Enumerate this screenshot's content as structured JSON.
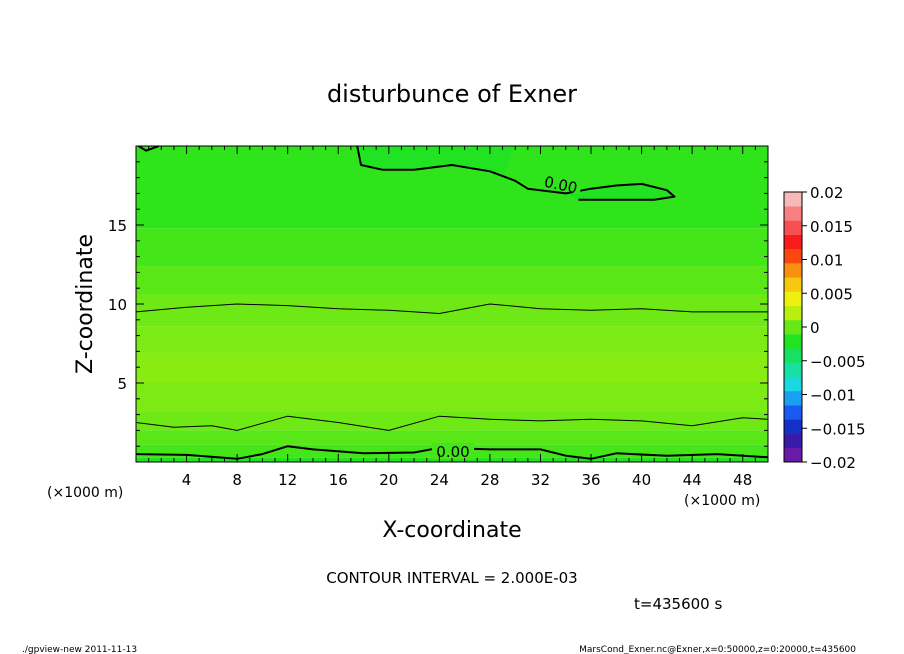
{
  "chart_data": {
    "type": "heatmap",
    "title": "disturbunce of Exner",
    "xlabel": "X-coordinate",
    "ylabel": "Z-coordinate",
    "x_unit": "(×1000 m)",
    "y_unit": "(×1000 m)",
    "xlim": [
      0,
      50
    ],
    "ylim": [
      0,
      20
    ],
    "x_ticks": [
      "4",
      "8",
      "12",
      "16",
      "20",
      "24",
      "28",
      "32",
      "36",
      "40",
      "44",
      "48"
    ],
    "y_ticks": [
      "5",
      "10",
      "15"
    ],
    "colorbar": {
      "range": [
        -0.02,
        0.02
      ],
      "tick_labels": [
        "0.02",
        "0.015",
        "0.01",
        "0.005",
        "0",
        "−0.005",
        "−0.01",
        "−0.015",
        "−0.02"
      ],
      "tick_values": [
        0.02,
        0.015,
        0.01,
        0.005,
        0,
        -0.005,
        -0.01,
        -0.015,
        -0.02
      ],
      "colors": [
        "#6a1aa8",
        "#3a1aa8",
        "#1430c8",
        "#1a5af0",
        "#1aa0f0",
        "#18d8e0",
        "#18e0a0",
        "#18e060",
        "#22e322",
        "#66e816",
        "#b8ee10",
        "#eef010",
        "#f8c810",
        "#f89010",
        "#f84810",
        "#f81c1c",
        "#f85050",
        "#f88080",
        "#f8b8b8"
      ]
    },
    "contour_interval": "CONTOUR INTERVAL = 2.000E-03",
    "contour_labels": [
      "0.00",
      "0.00"
    ],
    "bands": [
      {
        "z": [
          0.0,
          0.3
        ],
        "color": "#22e322"
      },
      {
        "z": [
          0.3,
          1.1
        ],
        "color": "#44e61a"
      },
      {
        "z": [
          1.1,
          2.0
        ],
        "color": "#5ae718"
      },
      {
        "z": [
          2.0,
          3.2
        ],
        "color": "#6ee916"
      },
      {
        "z": [
          3.2,
          5.0
        ],
        "color": "#7cea14"
      },
      {
        "z": [
          5.0,
          6.9
        ],
        "color": "#88ec12"
      },
      {
        "z": [
          6.9,
          8.6
        ],
        "color": "#7cea14"
      },
      {
        "z": [
          8.6,
          10.6
        ],
        "color": "#6ee916"
      },
      {
        "z": [
          10.6,
          12.4
        ],
        "color": "#5ae718"
      },
      {
        "z": [
          12.4,
          14.8
        ],
        "color": "#44e61a"
      },
      {
        "z": [
          14.8,
          20.0
        ],
        "color": "#30e41c"
      }
    ],
    "contours": [
      {
        "name": "c0",
        "width": 2,
        "points": [
          [
            0,
            0.5
          ],
          [
            4,
            0.45
          ],
          [
            8,
            0.2
          ],
          [
            10,
            0.5
          ],
          [
            12,
            1.0
          ],
          [
            14,
            0.8
          ],
          [
            18,
            0.55
          ],
          [
            22,
            0.6
          ],
          [
            24,
            0.9
          ],
          [
            28,
            0.8
          ],
          [
            32,
            0.8
          ],
          [
            34,
            0.4
          ],
          [
            36,
            0.2
          ],
          [
            38,
            0.55
          ],
          [
            42,
            0.4
          ],
          [
            46,
            0.5
          ],
          [
            50,
            0.3
          ]
        ]
      },
      {
        "name": "c1",
        "width": 1,
        "points": [
          [
            0,
            2.5
          ],
          [
            3,
            2.2
          ],
          [
            6,
            2.3
          ],
          [
            8,
            2.0
          ],
          [
            12,
            2.9
          ],
          [
            16,
            2.5
          ],
          [
            20,
            2.0
          ],
          [
            24,
            2.9
          ],
          [
            28,
            2.7
          ],
          [
            32,
            2.6
          ],
          [
            36,
            2.7
          ],
          [
            40,
            2.6
          ],
          [
            44,
            2.3
          ],
          [
            48,
            2.8
          ],
          [
            50,
            2.7
          ]
        ]
      },
      {
        "name": "c2",
        "width": 1,
        "points": [
          [
            0,
            9.5
          ],
          [
            4,
            9.8
          ],
          [
            8,
            10.0
          ],
          [
            12,
            9.9
          ],
          [
            16,
            9.7
          ],
          [
            20,
            9.6
          ],
          [
            24,
            9.4
          ],
          [
            28,
            10.0
          ],
          [
            32,
            9.7
          ],
          [
            36,
            9.6
          ],
          [
            40,
            9.7
          ],
          [
            44,
            9.5
          ],
          [
            48,
            9.5
          ],
          [
            50,
            9.5
          ]
        ]
      },
      {
        "name": "c3",
        "width": 2,
        "points": [
          [
            17.5,
            20
          ],
          [
            17.8,
            18.8
          ],
          [
            19.5,
            18.5
          ],
          [
            22,
            18.5
          ],
          [
            25,
            18.8
          ],
          [
            28,
            18.4
          ],
          [
            30,
            17.8
          ],
          [
            31,
            17.3
          ],
          [
            34,
            17.0
          ],
          [
            36,
            17.3
          ],
          [
            38,
            17.5
          ],
          [
            40,
            17.6
          ],
          [
            42,
            17.2
          ],
          [
            42.6,
            16.8
          ],
          [
            41,
            16.6
          ],
          [
            38,
            16.6
          ],
          [
            35,
            16.6
          ]
        ]
      },
      {
        "name": "c4",
        "width": 2,
        "points": [
          [
            0.2,
            20
          ],
          [
            0.8,
            19.7
          ],
          [
            1.8,
            20
          ]
        ]
      }
    ],
    "cloud_region": [
      [
        17.5,
        20
      ],
      [
        17.8,
        18.8
      ],
      [
        19.5,
        18.5
      ],
      [
        22,
        18.5
      ],
      [
        25,
        18.8
      ],
      [
        28,
        18.4
      ],
      [
        30,
        17.8
      ],
      [
        31,
        17.3
      ],
      [
        34,
        17.0
      ],
      [
        36,
        17.3
      ],
      [
        38,
        17.5
      ],
      [
        40,
        17.6
      ],
      [
        42,
        17.2
      ],
      [
        42.6,
        16.8
      ],
      [
        41,
        16.6
      ],
      [
        38,
        16.6
      ],
      [
        35,
        16.6
      ],
      [
        34,
        17.0
      ],
      [
        31,
        17.3
      ],
      [
        29,
        18.0
      ],
      [
        30,
        20
      ]
    ]
  },
  "time_label": "t=435600 s",
  "footer_left": "./gpview-new   2011-11-13",
  "footer_right": "MarsCond_Exner.nc@Exner,x=0:50000,z=0:20000,t=435600"
}
